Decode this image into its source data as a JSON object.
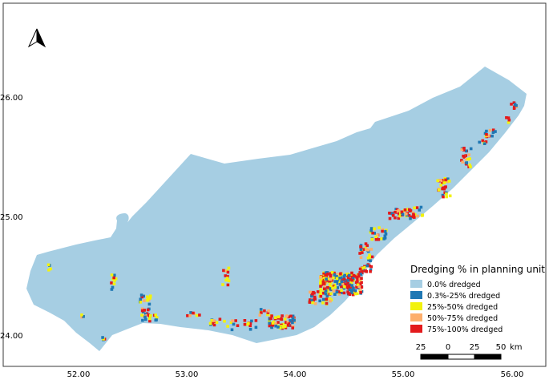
{
  "map": {
    "x_ticks": [
      "52.00",
      "53.00",
      "54.00",
      "55.00",
      "56.00"
    ],
    "y_ticks": [
      "26.00",
      "25.00",
      "24.00"
    ],
    "north_arrow": "north-arrow-icon"
  },
  "legend": {
    "title": "Dredging % in  planning unit",
    "items": [
      {
        "label": "0.0% dredged",
        "color": "#a6cee3"
      },
      {
        "label": "0.3%-25% dredged",
        "color": "#1f78b4"
      },
      {
        "label": "25%-50% dredged",
        "color": "#f2f20d"
      },
      {
        "label": "50%-75% dredged",
        "color": "#fdae6b"
      },
      {
        "label": "75%-100% dredged",
        "color": "#e31a1c"
      }
    ]
  },
  "scale_bar": {
    "labels": [
      "25",
      "0",
      "25",
      "50"
    ],
    "unit": "km"
  },
  "colors": {
    "sea": "#a6cee3",
    "low": "#1f78b4",
    "mid": "#f2f20d",
    "high": "#fdae6b",
    "full": "#e31a1c"
  }
}
